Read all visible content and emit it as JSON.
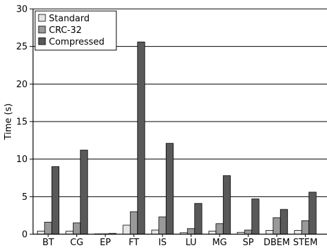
{
  "chart_data": {
    "type": "bar",
    "ylabel": "Time (s)",
    "xlabel": "",
    "ylim": [
      0,
      30
    ],
    "yticks": [
      0,
      5,
      10,
      15,
      20,
      25,
      30
    ],
    "grid": "horizontal",
    "legend_position": "top-left",
    "categories": [
      "BT",
      "CG",
      "EP",
      "FT",
      "IS",
      "LU",
      "MG",
      "SP",
      "DBEM",
      "STEM"
    ],
    "series": [
      {
        "name": "Standard",
        "color": "#e6e6e6",
        "values": [
          0.4,
          0.4,
          0.05,
          1.2,
          0.55,
          0.2,
          0.4,
          0.25,
          0.5,
          0.5
        ]
      },
      {
        "name": "CRC-32",
        "color": "#999999",
        "values": [
          1.6,
          1.5,
          0.05,
          3.0,
          2.3,
          0.75,
          1.4,
          0.55,
          2.2,
          1.8
        ]
      },
      {
        "name": "Compressed",
        "color": "#595959",
        "values": [
          9.0,
          11.2,
          0.1,
          25.6,
          12.1,
          4.1,
          7.8,
          4.7,
          3.3,
          5.6
        ]
      }
    ]
  }
}
